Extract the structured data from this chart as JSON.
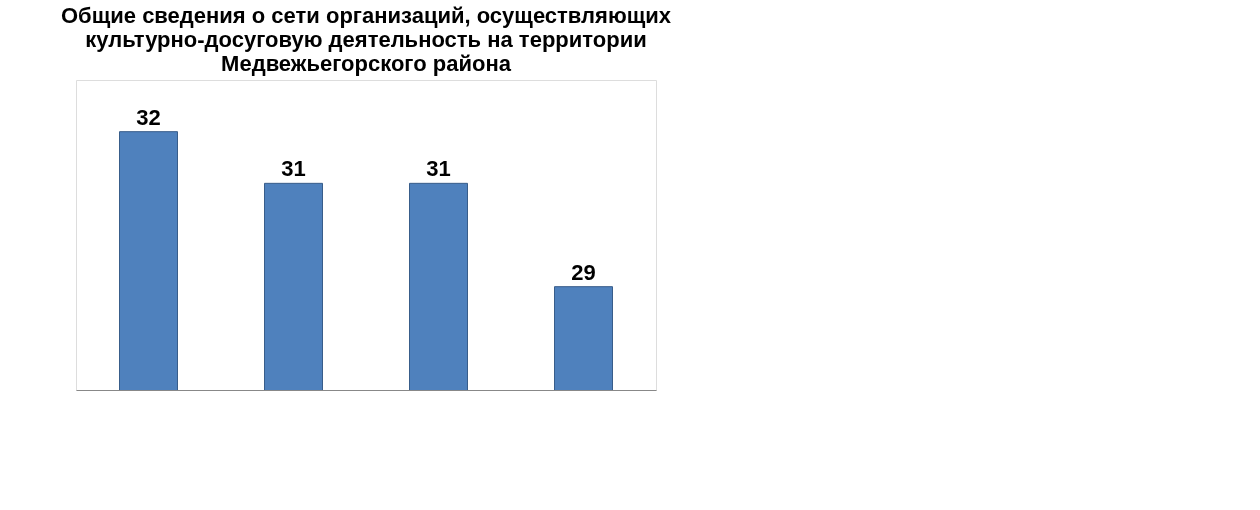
{
  "chart_data": {
    "type": "bar",
    "title": "Общие сведения о сети организаций, осуществляющих культурно-досуговую деятельность на территории Медвежьегорского района",
    "categories": [
      null,
      null,
      null,
      null
    ],
    "values": [
      32,
      31,
      31,
      29
    ],
    "color": "#4f81bd",
    "ylim": [
      27,
      33
    ],
    "data_labels": true,
    "grid": false,
    "tick_labels": false
  }
}
